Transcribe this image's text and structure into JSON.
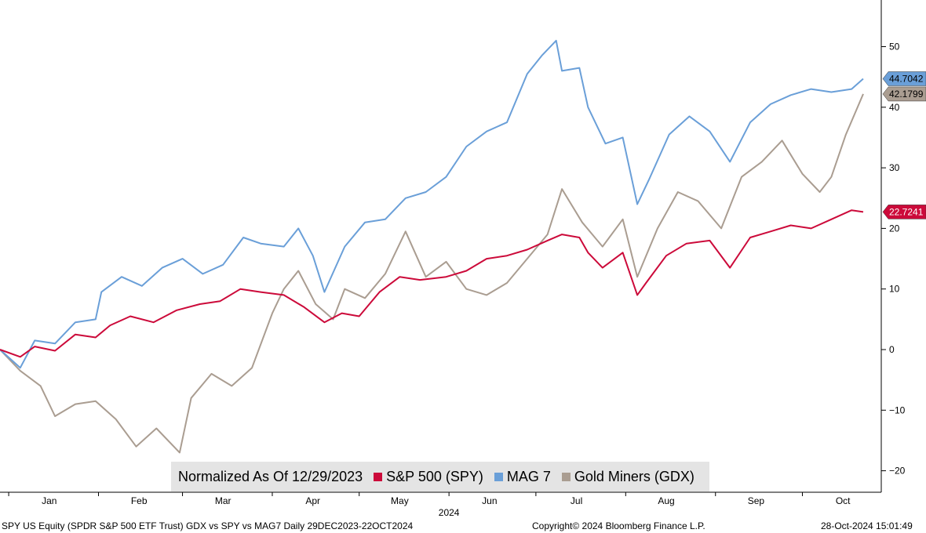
{
  "chart_data": {
    "type": "line",
    "x_start": "2023-12-29",
    "x_end": "2024-10-22",
    "xlabel": "2024",
    "month_labels": [
      {
        "label": "Jan",
        "date": "2024-01-15"
      },
      {
        "label": "Feb",
        "date": "2024-02-15"
      },
      {
        "label": "Mar",
        "date": "2024-03-15"
      },
      {
        "label": "Apr",
        "date": "2024-04-15"
      },
      {
        "label": "May",
        "date": "2024-05-15"
      },
      {
        "label": "Jun",
        "date": "2024-06-15"
      },
      {
        "label": "Jul",
        "date": "2024-07-15"
      },
      {
        "label": "Aug",
        "date": "2024-08-15"
      },
      {
        "label": "Sep",
        "date": "2024-09-15"
      },
      {
        "label": "Oct",
        "date": "2024-10-15"
      }
    ],
    "y_ticks": [
      -20,
      -10,
      0,
      10,
      20,
      30,
      40,
      50
    ],
    "ylim": [
      -23,
      58
    ],
    "grid": false,
    "legend_position": "bottom-center",
    "legend_title": "Normalized As Of 12/29/2023",
    "series": [
      {
        "name": "S&P 500 (SPY)",
        "color": "#cc0a3a",
        "last_label": "22.7241",
        "points": [
          [
            "2023-12-29",
            0
          ],
          [
            "2024-01-05",
            -1.2
          ],
          [
            "2024-01-10",
            0.5
          ],
          [
            "2024-01-17",
            -0.2
          ],
          [
            "2024-01-24",
            2.5
          ],
          [
            "2024-01-31",
            2.0
          ],
          [
            "2024-02-05",
            4.0
          ],
          [
            "2024-02-12",
            5.5
          ],
          [
            "2024-02-20",
            4.5
          ],
          [
            "2024-02-28",
            6.5
          ],
          [
            "2024-03-07",
            7.5
          ],
          [
            "2024-03-14",
            8.0
          ],
          [
            "2024-03-21",
            10.0
          ],
          [
            "2024-03-28",
            9.5
          ],
          [
            "2024-04-05",
            9.0
          ],
          [
            "2024-04-12",
            7.0
          ],
          [
            "2024-04-19",
            4.5
          ],
          [
            "2024-04-25",
            6.0
          ],
          [
            "2024-05-01",
            5.5
          ],
          [
            "2024-05-08",
            9.5
          ],
          [
            "2024-05-15",
            12.0
          ],
          [
            "2024-05-22",
            11.5
          ],
          [
            "2024-05-31",
            12.0
          ],
          [
            "2024-06-07",
            13.0
          ],
          [
            "2024-06-14",
            15.0
          ],
          [
            "2024-06-21",
            15.5
          ],
          [
            "2024-06-28",
            16.5
          ],
          [
            "2024-07-05",
            18.0
          ],
          [
            "2024-07-10",
            19.0
          ],
          [
            "2024-07-16",
            18.5
          ],
          [
            "2024-07-19",
            16.0
          ],
          [
            "2024-07-24",
            13.5
          ],
          [
            "2024-07-31",
            16.0
          ],
          [
            "2024-08-05",
            9.0
          ],
          [
            "2024-08-08",
            11.0
          ],
          [
            "2024-08-15",
            15.5
          ],
          [
            "2024-08-22",
            17.5
          ],
          [
            "2024-08-30",
            18.0
          ],
          [
            "2024-09-06",
            13.5
          ],
          [
            "2024-09-13",
            18.5
          ],
          [
            "2024-09-20",
            19.5
          ],
          [
            "2024-09-27",
            20.5
          ],
          [
            "2024-10-04",
            20.0
          ],
          [
            "2024-10-11",
            21.5
          ],
          [
            "2024-10-18",
            23.0
          ],
          [
            "2024-10-22",
            22.72
          ]
        ]
      },
      {
        "name": "MAG 7",
        "color": "#6a9fd8",
        "last_label": "44.7042",
        "points": [
          [
            "2023-12-29",
            0
          ],
          [
            "2024-01-05",
            -3.0
          ],
          [
            "2024-01-10",
            1.5
          ],
          [
            "2024-01-17",
            1.0
          ],
          [
            "2024-01-24",
            4.5
          ],
          [
            "2024-01-31",
            5.0
          ],
          [
            "2024-02-02",
            9.5
          ],
          [
            "2024-02-09",
            12.0
          ],
          [
            "2024-02-16",
            10.5
          ],
          [
            "2024-02-23",
            13.5
          ],
          [
            "2024-03-01",
            15.0
          ],
          [
            "2024-03-08",
            12.5
          ],
          [
            "2024-03-15",
            14.0
          ],
          [
            "2024-03-22",
            18.5
          ],
          [
            "2024-03-28",
            17.5
          ],
          [
            "2024-04-05",
            17.0
          ],
          [
            "2024-04-10",
            20.0
          ],
          [
            "2024-04-15",
            15.5
          ],
          [
            "2024-04-19",
            9.5
          ],
          [
            "2024-04-26",
            17.0
          ],
          [
            "2024-05-03",
            21.0
          ],
          [
            "2024-05-10",
            21.5
          ],
          [
            "2024-05-17",
            25.0
          ],
          [
            "2024-05-24",
            26.0
          ],
          [
            "2024-05-31",
            28.5
          ],
          [
            "2024-06-07",
            33.5
          ],
          [
            "2024-06-14",
            36.0
          ],
          [
            "2024-06-21",
            37.5
          ],
          [
            "2024-06-28",
            45.5
          ],
          [
            "2024-07-03",
            48.5
          ],
          [
            "2024-07-08",
            51.0
          ],
          [
            "2024-07-10",
            46.0
          ],
          [
            "2024-07-16",
            46.5
          ],
          [
            "2024-07-19",
            40.0
          ],
          [
            "2024-07-25",
            34.0
          ],
          [
            "2024-07-31",
            35.0
          ],
          [
            "2024-08-05",
            24.0
          ],
          [
            "2024-08-09",
            28.0
          ],
          [
            "2024-08-16",
            35.5
          ],
          [
            "2024-08-23",
            38.5
          ],
          [
            "2024-08-30",
            36.0
          ],
          [
            "2024-09-06",
            31.0
          ],
          [
            "2024-09-13",
            37.5
          ],
          [
            "2024-09-20",
            40.5
          ],
          [
            "2024-09-27",
            42.0
          ],
          [
            "2024-10-04",
            43.0
          ],
          [
            "2024-10-11",
            42.5
          ],
          [
            "2024-10-18",
            43.0
          ],
          [
            "2024-10-22",
            44.7
          ]
        ]
      },
      {
        "name": "Gold Miners (GDX)",
        "color": "#aa9d91",
        "last_label": "42.1799",
        "points": [
          [
            "2023-12-29",
            0
          ],
          [
            "2024-01-05",
            -3.5
          ],
          [
            "2024-01-12",
            -6.0
          ],
          [
            "2024-01-17",
            -11.0
          ],
          [
            "2024-01-24",
            -9.0
          ],
          [
            "2024-01-31",
            -8.5
          ],
          [
            "2024-02-07",
            -11.5
          ],
          [
            "2024-02-14",
            -16.0
          ],
          [
            "2024-02-21",
            -13.0
          ],
          [
            "2024-02-29",
            -17.0
          ],
          [
            "2024-03-04",
            -8.0
          ],
          [
            "2024-03-11",
            -4.0
          ],
          [
            "2024-03-18",
            -6.0
          ],
          [
            "2024-03-25",
            -3.0
          ],
          [
            "2024-04-01",
            6.0
          ],
          [
            "2024-04-05",
            10.0
          ],
          [
            "2024-04-10",
            13.0
          ],
          [
            "2024-04-16",
            7.5
          ],
          [
            "2024-04-22",
            5.0
          ],
          [
            "2024-04-26",
            10.0
          ],
          [
            "2024-05-03",
            8.5
          ],
          [
            "2024-05-10",
            12.5
          ],
          [
            "2024-05-17",
            19.5
          ],
          [
            "2024-05-24",
            12.0
          ],
          [
            "2024-05-31",
            14.5
          ],
          [
            "2024-06-07",
            10.0
          ],
          [
            "2024-06-14",
            9.0
          ],
          [
            "2024-06-21",
            11.0
          ],
          [
            "2024-06-28",
            15.0
          ],
          [
            "2024-07-05",
            19.0
          ],
          [
            "2024-07-10",
            26.5
          ],
          [
            "2024-07-17",
            21.0
          ],
          [
            "2024-07-24",
            17.0
          ],
          [
            "2024-07-31",
            21.5
          ],
          [
            "2024-08-05",
            12.0
          ],
          [
            "2024-08-12",
            20.0
          ],
          [
            "2024-08-19",
            26.0
          ],
          [
            "2024-08-26",
            24.5
          ],
          [
            "2024-09-03",
            20.0
          ],
          [
            "2024-09-10",
            28.5
          ],
          [
            "2024-09-17",
            31.0
          ],
          [
            "2024-09-24",
            34.5
          ],
          [
            "2024-10-01",
            29.0
          ],
          [
            "2024-10-07",
            26.0
          ],
          [
            "2024-10-11",
            28.5
          ],
          [
            "2024-10-16",
            35.5
          ],
          [
            "2024-10-22",
            42.18
          ]
        ]
      }
    ]
  },
  "footer": {
    "left": "SPY US Equity (SPDR S&P 500 ETF Trust) GDX vs SPY vs MAG7  Daily 29DEC2023-22OCT2024",
    "center": "Copyright© 2024 Bloomberg Finance L.P.",
    "right": "28-Oct-2024 15:01:49"
  }
}
